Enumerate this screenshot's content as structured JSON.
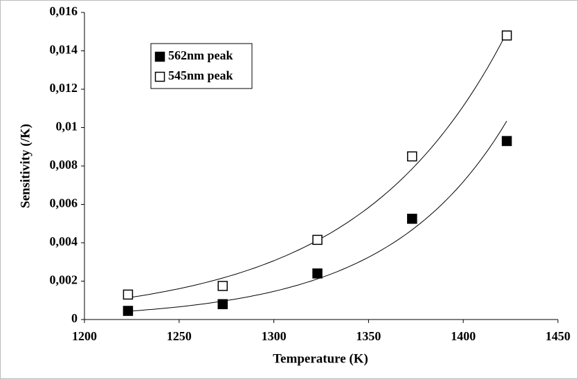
{
  "chart_data": {
    "type": "scatter",
    "xlabel": "Temperature (K)",
    "ylabel": "Sensitivity (/K)",
    "xlim": [
      1200,
      1450
    ],
    "xticks": [
      1200,
      1250,
      1300,
      1350,
      1400,
      1450
    ],
    "ylim": [
      0,
      0.016
    ],
    "yticks": [
      0,
      {
        "value": 0.002,
        "label": "0,002"
      },
      {
        "value": 0.004,
        "label": "0,004"
      },
      {
        "value": 0.006,
        "label": "0,006"
      },
      {
        "value": 0.008,
        "label": "0,008"
      },
      {
        "value": 0.01,
        "label": "0,01"
      },
      {
        "value": 0.012,
        "label": "0,012"
      },
      {
        "value": 0.014,
        "label": "0,014"
      },
      {
        "value": 0.016,
        "label": "0,016"
      }
    ],
    "trendline": "exponential",
    "series": [
      {
        "name": "562nm peak",
        "color": "#000000",
        "marker": "filled-square",
        "x": [
          1223,
          1273,
          1323,
          1373,
          1423
        ],
        "values": [
          0.00045,
          0.0008,
          0.0024,
          0.00525,
          0.0093
        ]
      },
      {
        "name": "545nm peak",
        "color": "#000000",
        "marker": "open-square",
        "x": [
          1223,
          1273,
          1323,
          1373,
          1423
        ],
        "values": [
          0.0013,
          0.00175,
          0.00415,
          0.0085,
          0.0148
        ]
      }
    ]
  }
}
